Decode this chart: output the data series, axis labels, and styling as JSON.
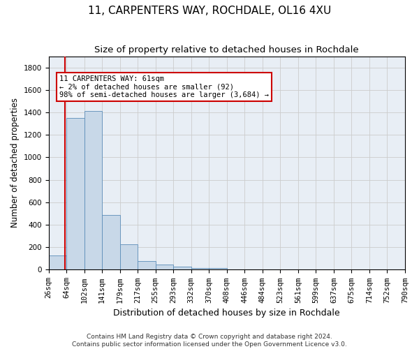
{
  "title_line1": "11, CARPENTERS WAY, ROCHDALE, OL16 4XU",
  "title_line2": "Size of property relative to detached houses in Rochdale",
  "xlabel": "Distribution of detached houses by size in Rochdale",
  "ylabel": "Number of detached properties",
  "bar_values": [
    130,
    1350,
    1410,
    490,
    225,
    75,
    45,
    25,
    15,
    15,
    0,
    0,
    0,
    0,
    0,
    0,
    0,
    0,
    0,
    0
  ],
  "x_labels": [
    "26sqm",
    "64sqm",
    "102sqm",
    "141sqm",
    "179sqm",
    "217sqm",
    "255sqm",
    "293sqm",
    "332sqm",
    "370sqm",
    "408sqm",
    "446sqm",
    "484sqm",
    "523sqm",
    "561sqm",
    "599sqm",
    "637sqm",
    "675sqm",
    "714sqm",
    "752sqm",
    "790sqm"
  ],
  "bar_color": "#c8d8e8",
  "bar_edge_color": "#5b8db8",
  "grid_color": "#cccccc",
  "background_color": "#e8eef5",
  "vline_color": "#cc0000",
  "annotation_text": "11 CARPENTERS WAY: 61sqm\n← 2% of detached houses are smaller (92)\n98% of semi-detached houses are larger (3,684) →",
  "annotation_box_edgecolor": "#cc0000",
  "annotation_box_facecolor": "white",
  "ylim": [
    0,
    1900
  ],
  "yticks": [
    0,
    200,
    400,
    600,
    800,
    1000,
    1200,
    1400,
    1600,
    1800
  ],
  "footer_text": "Contains HM Land Registry data © Crown copyright and database right 2024.\nContains public sector information licensed under the Open Government Licence v3.0.",
  "title_fontsize": 11,
  "subtitle_fontsize": 9.5,
  "xlabel_fontsize": 9,
  "ylabel_fontsize": 8.5,
  "footer_fontsize": 6.5,
  "tick_fontsize": 7.5,
  "annotation_fontsize": 7.5
}
